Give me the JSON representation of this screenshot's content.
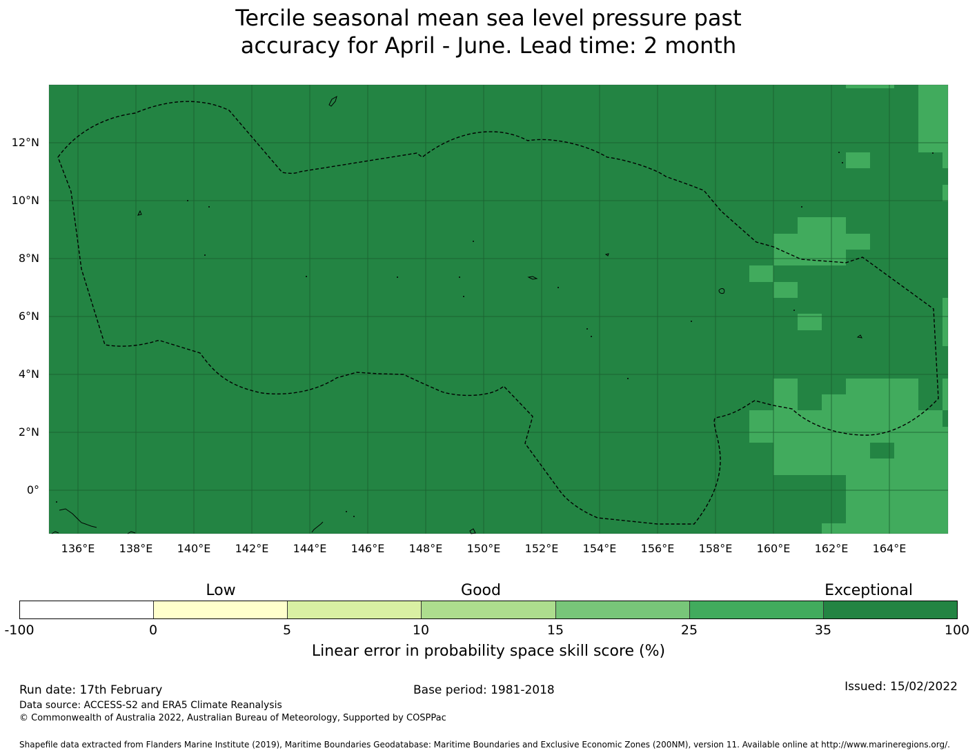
{
  "title": {
    "line1": "Tercile seasonal mean sea level pressure past",
    "line2": "accuracy for April - June. Lead time: 2 month"
  },
  "map": {
    "lat_labels": [
      "12°N",
      "10°N",
      "8°N",
      "6°N",
      "4°N",
      "2°N",
      "0°"
    ],
    "lon_labels": [
      "136°E",
      "138°E",
      "140°E",
      "142°E",
      "144°E",
      "146°E",
      "148°E",
      "150°E",
      "152°E",
      "154°E",
      "156°E",
      "158°E",
      "160°E",
      "162°E",
      "164°E"
    ],
    "background_category": "Exceptional",
    "colors": {
      "exceptional": "#238443",
      "very_good": "#41ab5d",
      "gridline": "#1a5c2e",
      "eez_boundary": "#000000"
    },
    "cells_35_to_25_range_note": ""
  },
  "colorbar": {
    "category_labels": [
      "Low",
      "Good",
      "Exceptional"
    ],
    "ticks": [
      "-100",
      "0",
      "5",
      "10",
      "15",
      "25",
      "35",
      "100"
    ],
    "segment_colors": [
      "#ffffff",
      "#ffffcc",
      "#d9f0a3",
      "#addd8e",
      "#78c679",
      "#41ab5d",
      "#238443"
    ],
    "label": "Linear error in probability space skill score (%)"
  },
  "footer": {
    "run_date": "Run date: 17th February",
    "base_period": "Base period: 1981-2018",
    "issued": "Issued: 15/02/2022",
    "data_source": "Data source: ACCESS-S2 and ERA5 Climate Reanalysis",
    "copyright": "© Commonwealth of Australia 2022, Australian Bureau of Meteorology, Supported by COSPPac",
    "shapefile": "Shapefile data extracted from Flanders Marine Institute (2019), Maritime Boundaries Geodatabase: Maritime Boundaries and Exclusive Economic Zones (200NM), version 11. Available online at http://www.marineregions.org/."
  }
}
